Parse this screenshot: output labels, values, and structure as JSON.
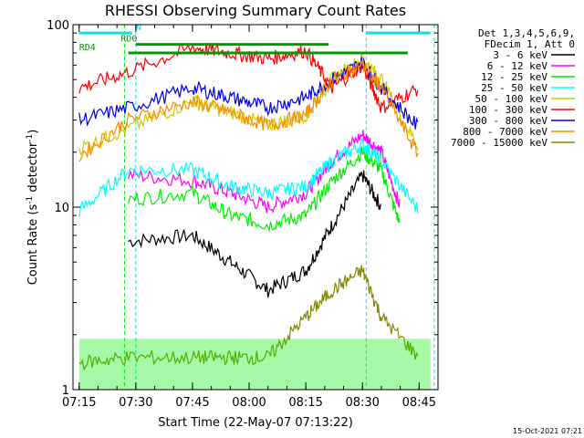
{
  "chart_data": {
    "type": "line",
    "title": "RHESSI Observing Summary Count Rates",
    "xlabel": "Start Time (22-May-07 07:13:22)",
    "ylabel": "Count Rate (s⁻¹ detector⁻¹)",
    "ylabel_text": "Count Rate (s",
    "ylabel_sup1": "-1",
    "ylabel_mid": " detector",
    "ylabel_sup2": "-1",
    "ylabel_end": ")",
    "y_scale": "log",
    "ylim": [
      1,
      100
    ],
    "xlim": [
      "07:13:22",
      "08:50:00"
    ],
    "x_ticks": [
      "07:15",
      "07:30",
      "07:45",
      "08:00",
      "08:15",
      "08:30",
      "08:45"
    ],
    "y_ticks": [
      "1",
      "10",
      "100"
    ],
    "legend_header": [
      "Det 1,3,4,5,6,9,",
      "FDecim 1, Att 0"
    ],
    "footer_date": "15-Oct-2021 07:21",
    "annotations": [
      {
        "text": "N",
        "color": "#00e5e5"
      },
      {
        "text": "RD0",
        "color": "#009900"
      },
      {
        "text": "RD4",
        "color": "#009900"
      }
    ],
    "series": [
      {
        "name": "3 - 6 keV",
        "color": "#000000",
        "values": [
          [
            "07:28",
            6.5
          ],
          [
            "07:45",
            7
          ],
          [
            "07:55",
            5
          ],
          [
            "08:05",
            3.5
          ],
          [
            "08:15",
            4.5
          ],
          [
            "08:22",
            8
          ],
          [
            "08:30",
            15
          ],
          [
            "08:35",
            10
          ],
          [
            "08:40",
            null
          ]
        ]
      },
      {
        "name": "6 - 12 keV",
        "color": "#ff00ff",
        "values": [
          [
            "07:28",
            15
          ],
          [
            "07:45",
            14
          ],
          [
            "07:55",
            12
          ],
          [
            "08:05",
            10
          ],
          [
            "08:15",
            12
          ],
          [
            "08:22",
            18
          ],
          [
            "08:30",
            25
          ],
          [
            "08:35",
            20
          ],
          [
            "08:40",
            10
          ]
        ]
      },
      {
        "name": "12 - 25 keV",
        "color": "#00ee00",
        "values": [
          [
            "07:28",
            11
          ],
          [
            "07:45",
            12
          ],
          [
            "07:55",
            9
          ],
          [
            "08:05",
            8
          ],
          [
            "08:15",
            9
          ],
          [
            "08:22",
            14
          ],
          [
            "08:30",
            20
          ],
          [
            "08:35",
            16
          ],
          [
            "08:40",
            8
          ]
        ]
      },
      {
        "name": "25 - 50 keV",
        "color": "#00ffff",
        "values": [
          [
            "07:15",
            9.5
          ],
          [
            "07:28",
            16
          ],
          [
            "07:45",
            16
          ],
          [
            "07:55",
            13
          ],
          [
            "08:05",
            12
          ],
          [
            "08:15",
            13
          ],
          [
            "08:22",
            18
          ],
          [
            "08:30",
            22
          ],
          [
            "08:35",
            18
          ],
          [
            "08:45",
            9.5
          ]
        ]
      },
      {
        "name": "50 - 100 keV",
        "color": "#cccc00",
        "values": [
          [
            "07:15",
            21
          ],
          [
            "07:28",
            27
          ],
          [
            "07:45",
            38
          ],
          [
            "07:55",
            33
          ],
          [
            "08:05",
            28
          ],
          [
            "08:15",
            32
          ],
          [
            "08:22",
            50
          ],
          [
            "08:30",
            65
          ],
          [
            "08:35",
            50
          ],
          [
            "08:45",
            21
          ]
        ]
      },
      {
        "name": "100 - 300 keV",
        "color": "#ff0000",
        "values": [
          [
            "07:15",
            45
          ],
          [
            "07:28",
            55
          ],
          [
            "07:45",
            75
          ],
          [
            "07:55",
            70
          ],
          [
            "08:05",
            65
          ],
          [
            "08:15",
            72
          ],
          [
            "08:22",
            45
          ],
          [
            "08:30",
            60
          ],
          [
            "08:35",
            35
          ],
          [
            "08:45",
            45
          ]
        ]
      },
      {
        "name": "300 - 800 keV",
        "color": "#0000ee",
        "values": [
          [
            "07:15",
            30
          ],
          [
            "07:28",
            35
          ],
          [
            "07:45",
            45
          ],
          [
            "07:55",
            40
          ],
          [
            "08:05",
            35
          ],
          [
            "08:15",
            40
          ],
          [
            "08:22",
            50
          ],
          [
            "08:30",
            62
          ],
          [
            "08:35",
            45
          ],
          [
            "08:45",
            27
          ]
        ]
      },
      {
        "name": "800 - 7000 keV",
        "color": "#ff8800",
        "values": [
          [
            "07:15",
            19
          ],
          [
            "07:28",
            30
          ],
          [
            "07:45",
            38
          ],
          [
            "07:55",
            33
          ],
          [
            "08:05",
            28
          ],
          [
            "08:15",
            32
          ],
          [
            "08:22",
            50
          ],
          [
            "08:30",
            60
          ],
          [
            "08:35",
            45
          ],
          [
            "08:45",
            19
          ]
        ]
      },
      {
        "name": "7000 - 15000 keV",
        "color": "#888800",
        "values": [
          [
            "07:15",
            1.4
          ],
          [
            "07:28",
            1.5
          ],
          [
            "07:45",
            1.5
          ],
          [
            "07:55",
            1.5
          ],
          [
            "08:05",
            1.5
          ],
          [
            "08:15",
            2.5
          ],
          [
            "08:22",
            3.5
          ],
          [
            "08:30",
            4.5
          ],
          [
            "08:35",
            2.5
          ],
          [
            "08:45",
            1.5
          ]
        ]
      }
    ]
  }
}
